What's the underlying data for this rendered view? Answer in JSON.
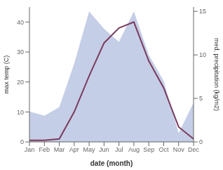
{
  "chart_data": {
    "type": "line",
    "xlabel": "date (month)",
    "ylabel": "max temp (C)",
    "y2label": "med. precipitation (kg/m2)",
    "categories": [
      "Jan",
      "Feb",
      "Mar",
      "Apr",
      "May",
      "Jun",
      "Jul",
      "Aug",
      "Sep",
      "Oct",
      "Nov",
      "Dec"
    ],
    "series": [
      {
        "type": "area",
        "axis": "y2",
        "color": "#B0BEDD",
        "values": [
          3.5,
          3.0,
          4.0,
          9.0,
          15.0,
          13.0,
          11.5,
          15.0,
          10.0,
          7.0,
          1.0,
          4.5
        ]
      },
      {
        "type": "line",
        "axis": "y",
        "color": "#7B3B5E",
        "values": [
          0.5,
          0.5,
          1.0,
          10.0,
          22.0,
          33.0,
          38.0,
          40.0,
          27.0,
          18.0,
          5.0,
          1.0
        ]
      }
    ],
    "ylim": [
      0,
      45
    ],
    "yticks": [
      0,
      10,
      20,
      30,
      40
    ],
    "y2lim": [
      0,
      15.5
    ],
    "y2ticks": [
      0,
      5,
      10,
      15
    ],
    "grid": false
  }
}
